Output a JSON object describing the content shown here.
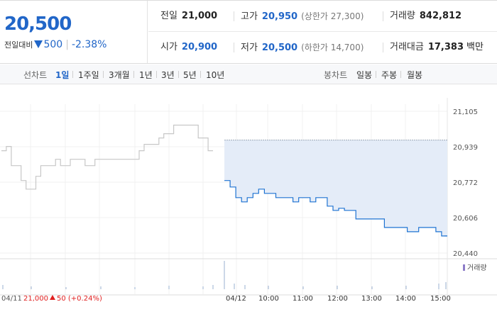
{
  "quote": {
    "price": "20,500",
    "change_label": "전일대비",
    "change_value": "500",
    "change_rate": "-2.38%",
    "prev_close_label": "전일",
    "prev_close": "21,000",
    "high_label": "고가",
    "high": "20,950",
    "upper_limit": "(상한가 27,300)",
    "volume_label": "거래량",
    "volume": "842,812",
    "open_label": "시가",
    "open": "20,900",
    "low_label": "저가",
    "low": "20,500",
    "lower_limit": "(하한가 14,700)",
    "amount_label": "거래대금",
    "amount": "17,383",
    "amount_unit": "백만"
  },
  "toolbar": {
    "line_label": "선차트",
    "periods": [
      "1일",
      "1주일",
      "3개월",
      "1년",
      "3년",
      "5년",
      "10년"
    ],
    "candle_label": "봉차트",
    "candles": [
      "일봉",
      "주봉",
      "월봉"
    ]
  },
  "chart_legend": "거래량",
  "colors": {
    "accent": "#2166c8",
    "fall": "#1e73d2",
    "rise": "#e02020",
    "prev_line": "#c7c7c7",
    "fill": "#e4ecf8"
  },
  "chart_data": {
    "type": "line",
    "ylim": [
      20440,
      21105
    ],
    "yticks": [
      "21,105",
      "20,939",
      "20,772",
      "20,606",
      "20,440"
    ],
    "prev_day": {
      "date": "04/11",
      "close": "21,000",
      "change": "50",
      "change_rate": "(+0.24%)",
      "values": [
        20920,
        20940,
        20850,
        20850,
        20780,
        20740,
        20740,
        20800,
        20850,
        20850,
        20850,
        20880,
        20850,
        20850,
        20880,
        20880,
        20880,
        20850,
        20850,
        20880,
        20880,
        20880,
        20880,
        20880,
        20880,
        20880,
        20880,
        20880,
        20920,
        20950,
        20950,
        20950,
        20980,
        21000,
        21000,
        21040,
        21040,
        21040,
        21040,
        21040,
        20980,
        20980,
        20920
      ]
    },
    "today": {
      "date": "04/12",
      "x": [
        "09:00",
        "09:10",
        "09:20",
        "09:30",
        "09:40",
        "09:50",
        "10:00",
        "10:10",
        "10:20",
        "10:30",
        "10:40",
        "10:50",
        "11:00",
        "11:10",
        "11:20",
        "11:30",
        "11:40",
        "11:50",
        "12:00",
        "12:10",
        "12:20",
        "12:30",
        "12:40",
        "12:50",
        "13:00",
        "13:10",
        "13:20",
        "13:30",
        "13:40",
        "13:50",
        "14:00",
        "14:10",
        "14:20",
        "14:30",
        "14:40",
        "14:50",
        "15:00",
        "15:10",
        "15:20"
      ],
      "values": [
        20780,
        20750,
        20700,
        20680,
        20700,
        20720,
        20740,
        20720,
        20720,
        20700,
        20700,
        20700,
        20680,
        20700,
        20700,
        20680,
        20700,
        20700,
        20660,
        20640,
        20650,
        20640,
        20640,
        20600,
        20600,
        20600,
        20600,
        20600,
        20560,
        20560,
        20560,
        20560,
        20540,
        20540,
        20560,
        20560,
        20560,
        20540,
        20520
      ],
      "upper_band": 20970,
      "x_ticks": [
        "04/12",
        "10:00",
        "11:00",
        "12:00",
        "13:00",
        "14:00",
        "15:00"
      ]
    }
  }
}
